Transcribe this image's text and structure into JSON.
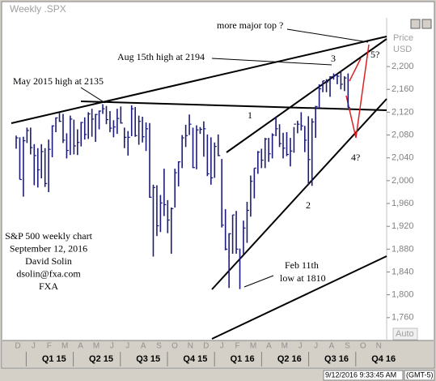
{
  "chart_data": {
    "type": "ohlc",
    "title": "Weekly .SPX",
    "y_label": "Price",
    "y_unit": "USD",
    "scale_mode": "Auto",
    "color": "#1c1c78",
    "ylim": [
      1720,
      2274
    ],
    "yticks": [
      {
        "value": 1760,
        "label": "1,760"
      },
      {
        "value": 1800,
        "label": "1,800"
      },
      {
        "value": 1840,
        "label": "1,840"
      },
      {
        "value": 1880,
        "label": "1,880"
      },
      {
        "value": 1920,
        "label": "1,920"
      },
      {
        "value": 1960,
        "label": "1,960"
      },
      {
        "value": 2000,
        "label": "2,000"
      },
      {
        "value": 2040,
        "label": "2,040"
      },
      {
        "value": 2080,
        "label": "2,080"
      },
      {
        "value": 2120,
        "label": "2,120"
      },
      {
        "value": 2160,
        "label": "2,160"
      },
      {
        "value": 2200,
        "label": "2,200"
      }
    ],
    "months": [
      "D",
      "J",
      "F",
      "M",
      "A",
      "M",
      "J",
      "J",
      "A",
      "S",
      "O",
      "N",
      "D",
      "J",
      "F",
      "M",
      "A",
      "M",
      "J",
      "J",
      "A",
      "S",
      "O",
      "N"
    ],
    "quarters": [
      "Q1 15",
      "Q2 15",
      "Q3 15",
      "Q4 15",
      "Q1 16",
      "Q2 16",
      "Q3 16",
      "Q4 16"
    ],
    "high": [
      2079,
      2076,
      2077,
      2093,
      2093,
      2064,
      2057,
      2064,
      2057,
      2072,
      2097,
      2111,
      2119,
      2117,
      2083,
      2114,
      2107,
      2090,
      2103,
      2111,
      2120,
      2126,
      2117,
      2123,
      2134,
      2131,
      2122,
      2106,
      2126,
      2130,
      2093,
      2087,
      2132,
      2129,
      2114,
      2112,
      2102,
      2101,
      1993,
      1992,
      1975,
      2021,
      1966,
      1953,
      2021,
      2034,
      2080,
      2098,
      2116,
      2093,
      2097,
      2094,
      2104,
      2081,
      2076,
      2067,
      2081,
      2038,
      1950,
      1908,
      1940,
      1947,
      1881,
      1930,
      1963,
      2009,
      2022,
      2052,
      2056,
      2075,
      2075,
      2083,
      2111,
      2099,
      2084,
      2085,
      2075,
      2094,
      2105,
      2120,
      2096,
      2113,
      2109,
      2131,
      2169,
      2175,
      2178,
      2183,
      2188,
      2187,
      2193,
      2183,
      2188
    ],
    "low": [
      2056,
      2002,
      1972,
      2066,
      2046,
      1992,
      1988,
      2004,
      1989,
      1980,
      2041,
      2085,
      2103,
      2066,
      2039,
      2045,
      2046,
      2045,
      2060,
      2072,
      2073,
      2077,
      2068,
      2090,
      2117,
      2099,
      2085,
      2076,
      2082,
      2100,
      2057,
      2044,
      2078,
      2077,
      2063,
      2067,
      2052,
      1970,
      1867,
      1903,
      1910,
      1938,
      1908,
      1872,
      1953,
      1990,
      2022,
      2059,
      2080,
      2022,
      2020,
      2082,
      2042,
      2008,
      1993,
      2005,
      2043,
      1918,
      1878,
      1812,
      1872,
      1872,
      1810,
      1871,
      1891,
      1937,
      1969,
      2012,
      2022,
      2022,
      2033,
      2039,
      2078,
      2059,
      2039,
      2043,
      2025,
      2049,
      2083,
      2088,
      2050,
      1992,
      1991,
      2075,
      2127,
      2155,
      2155,
      2147,
      2177,
      2169,
      2160,
      2157,
      2128
    ],
    "close": [
      2075,
      2002,
      2070,
      2088,
      2058,
      2044,
      2019,
      2051,
      1995,
      2055,
      2096,
      2110,
      2104,
      2071,
      2053,
      2108,
      2061,
      2067,
      2102,
      2081,
      2117,
      2108,
      2116,
      2122,
      2126,
      2107,
      2092,
      2094,
      2109,
      2101,
      2076,
      2076,
      2126,
      2079,
      2104,
      2077,
      2091,
      1971,
      1988,
      1921,
      1961,
      1958,
      1931,
      1951,
      2014,
      2033,
      2075,
      2079,
      2099,
      2023,
      2089,
      2090,
      2091,
      2012,
      2005,
      2060,
      2044,
      1922,
      1880,
      1907,
      1940,
      1880,
      1865,
      1917,
      1948,
      1999,
      2022,
      2050,
      2036,
      2073,
      2047,
      2080,
      2091,
      2065,
      2057,
      2046,
      2052,
      2099,
      2099,
      2096,
      2071,
      2037,
      2103,
      2130,
      2161,
      2175,
      2173,
      2182,
      2184,
      2183,
      2169,
      2180,
      2128
    ],
    "annotations": {
      "top": "more major top ?",
      "aug": "Aug 15th high at 2194",
      "may": "May 2015 high at 2135",
      "w1": "1",
      "w2": "2",
      "w3": "3",
      "w4": "4?",
      "w5": "5?",
      "feb1": "Feb 11th",
      "feb2": "low at 1810"
    },
    "credits": [
      "S&P 500 weekly chart",
      "September 12, 2016",
      "David Solin",
      "dsolin@fxa.com",
      "FXA"
    ],
    "status": {
      "date": "9/12/2016 9:33:45 AM",
      "tz": "(GMT-5)"
    }
  }
}
